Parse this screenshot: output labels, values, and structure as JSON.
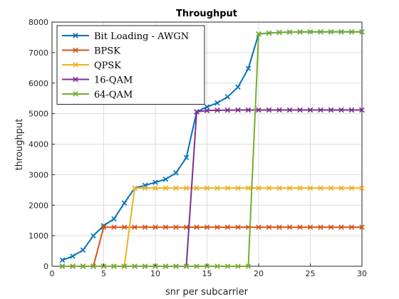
{
  "chart_data": {
    "type": "line",
    "title": "Throughput",
    "xlabel": "snr per subcarrier",
    "ylabel": "throughput",
    "xlim": [
      0,
      30
    ],
    "ylim": [
      0,
      8000
    ],
    "xticks": [
      0,
      5,
      10,
      15,
      20,
      25,
      30
    ],
    "yticks": [
      0,
      1000,
      2000,
      3000,
      4000,
      5000,
      6000,
      7000,
      8000
    ],
    "grid": true,
    "legend_position": "top-left",
    "x": [
      1,
      2,
      3,
      4,
      5,
      6,
      7,
      8,
      9,
      10,
      11,
      12,
      13,
      14,
      15,
      16,
      17,
      18,
      19,
      20,
      21,
      22,
      23,
      24,
      25,
      26,
      27,
      28,
      29,
      30
    ],
    "series": [
      {
        "name": "Bit Loading - AWGN",
        "color": "#0072BD",
        "marker": "x",
        "values": [
          200,
          330,
          530,
          1000,
          1330,
          1550,
          2070,
          2560,
          2650,
          2750,
          2850,
          3060,
          3560,
          5060,
          5220,
          5350,
          5550,
          5870,
          6480,
          7610,
          7640,
          7660,
          7670,
          7675,
          7680,
          7680,
          7680,
          7680,
          7680,
          7680
        ]
      },
      {
        "name": "BPSK",
        "color": "#D95319",
        "marker": "x",
        "values": [
          0,
          0,
          0,
          0,
          1280,
          1280,
          1280,
          1280,
          1280,
          1280,
          1280,
          1280,
          1280,
          1280,
          1280,
          1280,
          1280,
          1280,
          1280,
          1280,
          1280,
          1280,
          1280,
          1280,
          1280,
          1280,
          1280,
          1280,
          1280,
          1280
        ]
      },
      {
        "name": "QPSK",
        "color": "#EDB120",
        "marker": "x",
        "values": [
          0,
          0,
          0,
          0,
          0,
          0,
          0,
          2560,
          2560,
          2560,
          2560,
          2560,
          2560,
          2560,
          2560,
          2560,
          2560,
          2560,
          2560,
          2560,
          2560,
          2560,
          2560,
          2560,
          2560,
          2560,
          2560,
          2560,
          2560,
          2560
        ]
      },
      {
        "name": "16-QAM",
        "color": "#7E2F8E",
        "marker": "x",
        "values": [
          0,
          0,
          0,
          0,
          0,
          0,
          0,
          0,
          0,
          0,
          0,
          0,
          0,
          5060,
          5100,
          5110,
          5115,
          5120,
          5120,
          5120,
          5120,
          5120,
          5120,
          5120,
          5120,
          5120,
          5120,
          5120,
          5120,
          5120
        ]
      },
      {
        "name": "64-QAM",
        "color": "#77AC30",
        "marker": "x",
        "values": [
          0,
          0,
          0,
          0,
          0,
          0,
          0,
          0,
          0,
          0,
          0,
          0,
          0,
          0,
          0,
          0,
          0,
          0,
          0,
          7610,
          7640,
          7660,
          7670,
          7675,
          7680,
          7680,
          7680,
          7680,
          7680,
          7680
        ]
      }
    ]
  }
}
